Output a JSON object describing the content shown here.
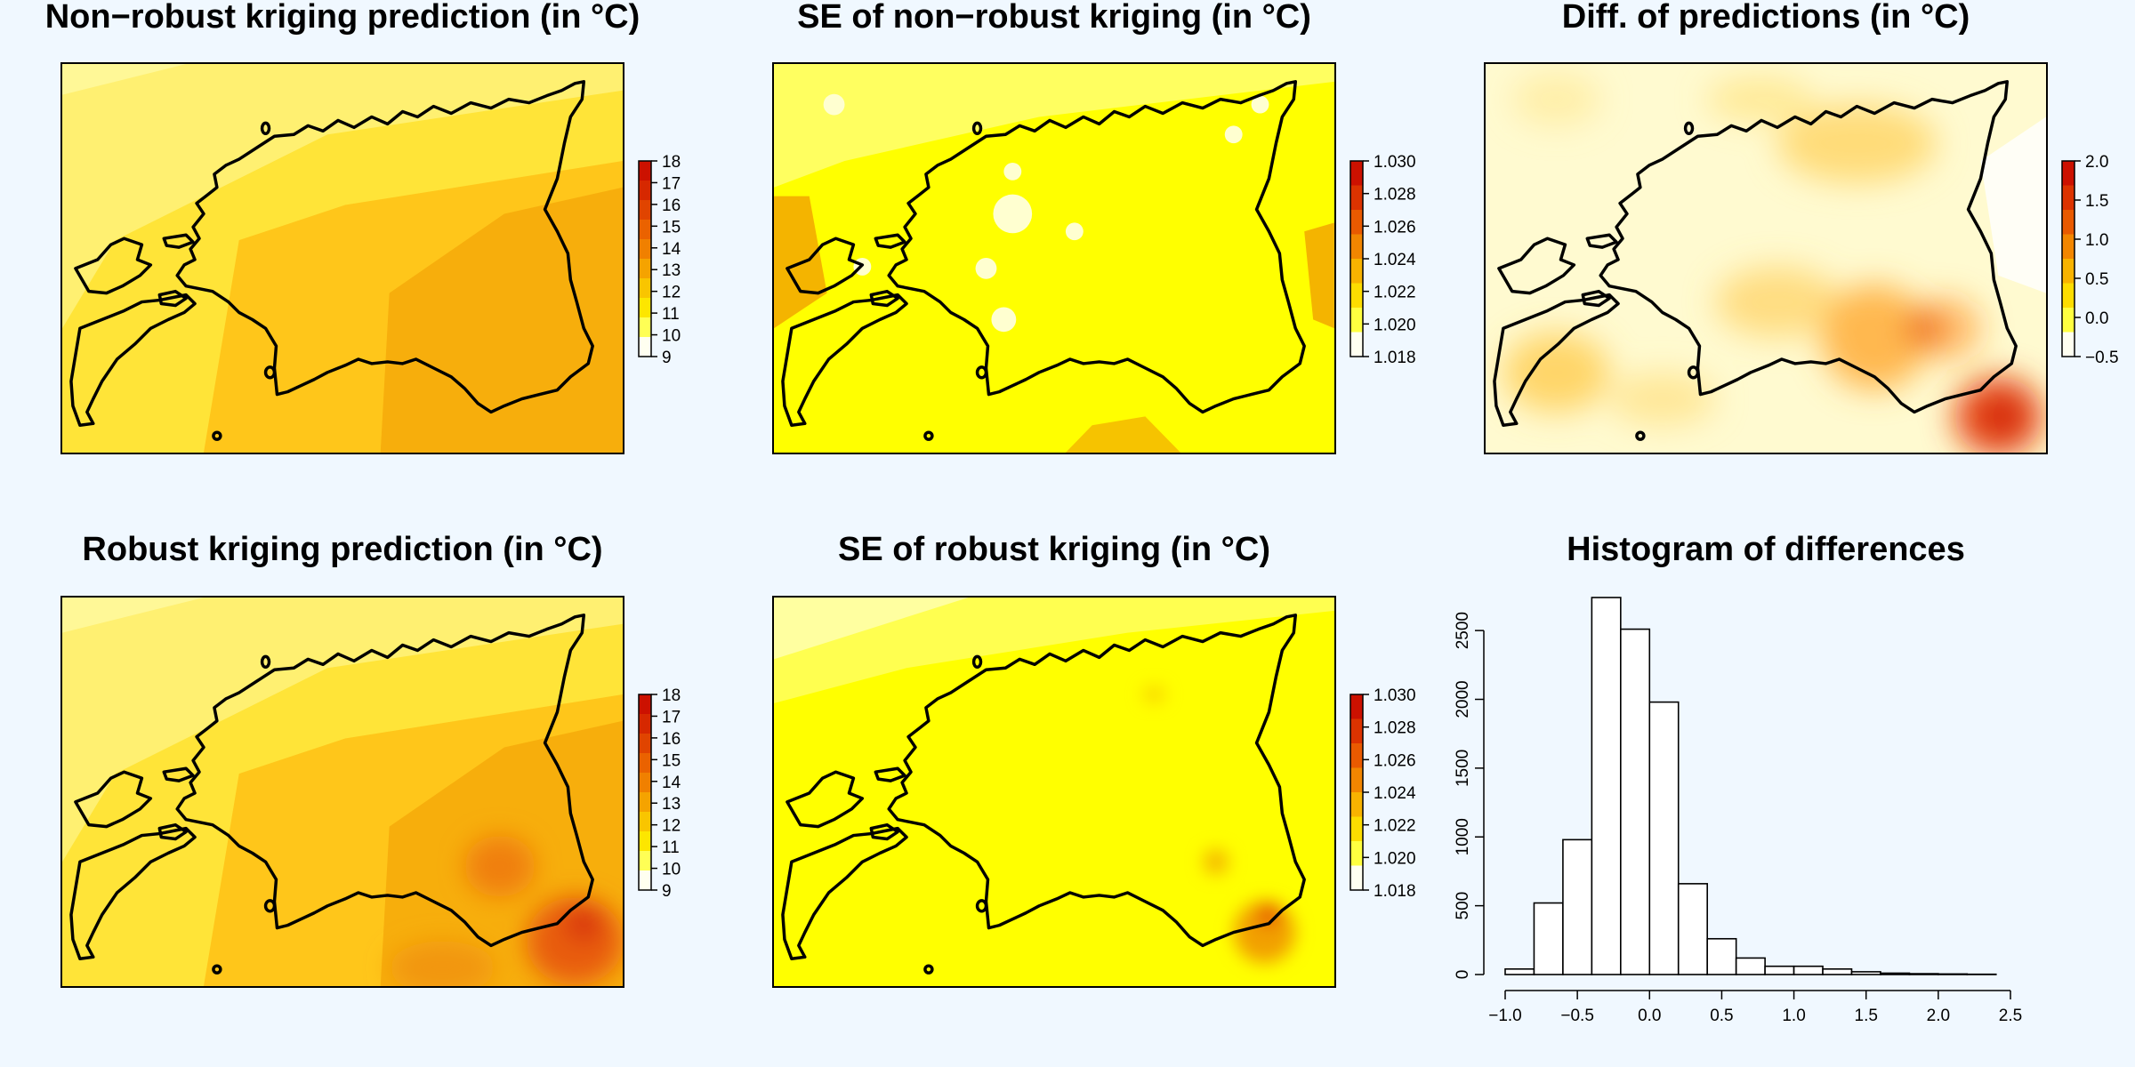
{
  "panels": {
    "p1": {
      "title": "Non−robust kriging prediction (in °C)"
    },
    "p2": {
      "title": "SE of non−robust kriging (in °C)"
    },
    "p3": {
      "title": "Diff. of predictions (in °C)"
    },
    "p4": {
      "title": "Robust kriging prediction (in °C)"
    },
    "p5": {
      "title": "SE of robust kriging (in °C)"
    },
    "p6": {
      "title": "Histogram of differences"
    }
  },
  "colorbars": {
    "temperature": {
      "ticks": [
        "18",
        "17",
        "16",
        "15",
        "14",
        "13",
        "12",
        "11",
        "10",
        "9"
      ],
      "colors": [
        "#cc1100",
        "#d62800",
        "#e04400",
        "#ea6200",
        "#f08000",
        "#f5a300",
        "#f9c500",
        "#fde600",
        "#ffff55",
        "#fffff0"
      ]
    },
    "se": {
      "ticks": [
        "1.030",
        "1.028",
        "1.026",
        "1.024",
        "1.022",
        "1.020",
        "1.018"
      ],
      "colors": [
        "#cc1100",
        "#dc3300",
        "#e95a00",
        "#f28600",
        "#f8b300",
        "#fddd00",
        "#ffff40",
        "#fffff0"
      ]
    },
    "diff": {
      "ticks": [
        "2.0",
        "1.5",
        "1.0",
        "0.5",
        "0.0",
        "−0.5"
      ],
      "colors": [
        "#cc1100",
        "#dc3300",
        "#e95a00",
        "#f28600",
        "#f8b300",
        "#fddd00",
        "#ffff40",
        "#fffff0"
      ]
    }
  },
  "maps": {
    "map_colors": {
      "cool": "#fffeb5",
      "pale": "#fff58a",
      "yellow": "#ffe438",
      "warm": "#ffc61a",
      "orange": "#f7ae0c",
      "hot": "#e8640a",
      "se_base": "#ffff00",
      "se_light": "#ffffa0",
      "se_orange": "#f4b400",
      "diff_base": "#fffad0",
      "diff_red": "#d0280a"
    }
  },
  "chart_data": {
    "type": "bar",
    "title": "Histogram of differences",
    "bin_edges": [
      -1.0,
      -0.8,
      -0.6,
      -0.4,
      -0.2,
      0.0,
      0.2,
      0.4,
      0.6,
      0.8,
      1.0,
      1.2,
      1.4,
      1.6,
      1.8,
      2.0,
      2.2,
      2.4
    ],
    "values": [
      40,
      520,
      980,
      2740,
      2510,
      1980,
      660,
      260,
      120,
      60,
      60,
      40,
      20,
      10,
      6,
      4,
      2
    ],
    "x_ticks": [
      "−1.0",
      "−0.5",
      "0.0",
      "0.5",
      "1.0",
      "1.5",
      "2.0",
      "2.5"
    ],
    "x_tick_values": [
      -1.0,
      -0.5,
      0.0,
      0.5,
      1.0,
      1.5,
      2.0,
      2.5
    ],
    "y_ticks": [
      "0",
      "500",
      "1000",
      "1500",
      "2000",
      "2500"
    ],
    "y_tick_values": [
      0,
      500,
      1000,
      1500,
      2000,
      2500
    ],
    "xlim": [
      -1.0,
      2.5
    ],
    "ylim": [
      0,
      2740
    ],
    "xlabel": "",
    "ylabel": ""
  }
}
